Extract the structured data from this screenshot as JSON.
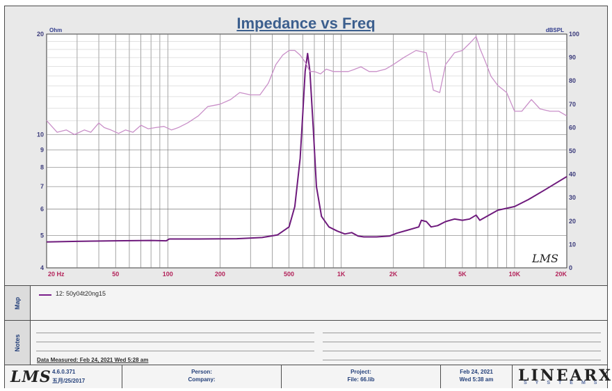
{
  "chart_data": {
    "type": "line",
    "title": "Impedance vs Freq",
    "y_left": {
      "unit": "Ohm",
      "scale": "log",
      "range": [
        4,
        20
      ],
      "ticks": [
        4,
        5,
        6,
        7,
        8,
        9,
        10,
        20
      ]
    },
    "y_right": {
      "unit": "dBSPL",
      "scale": "linear",
      "range": [
        0,
        100
      ],
      "ticks": [
        0,
        10,
        20,
        30,
        40,
        50,
        60,
        70,
        80,
        90,
        100
      ]
    },
    "x": {
      "unit": "Hz",
      "scale": "log",
      "range": [
        20,
        20000
      ],
      "ticks": [
        {
          "v": 20,
          "label": "20  Hz"
        },
        {
          "v": 50,
          "label": "50"
        },
        {
          "v": 100,
          "label": "100"
        },
        {
          "v": 200,
          "label": "200"
        },
        {
          "v": 500,
          "label": "500"
        },
        {
          "v": 1000,
          "label": "1K"
        },
        {
          "v": 2000,
          "label": "2K"
        },
        {
          "v": 5000,
          "label": "5K"
        },
        {
          "v": 10000,
          "label": "10K"
        },
        {
          "v": 20000,
          "label": "20K"
        }
      ]
    },
    "grid": true,
    "series": [
      {
        "name": "12: 50y04t20ng15",
        "axis": "left",
        "color": "#6e1a7c",
        "x": [
          20,
          30,
          50,
          80,
          98,
          102,
          150,
          250,
          350,
          430,
          500,
          540,
          580,
          600,
          620,
          640,
          660,
          690,
          720,
          770,
          850,
          950,
          1050,
          1150,
          1250,
          1350,
          1600,
          1900,
          2100,
          2400,
          2800,
          2900,
          3100,
          3300,
          3600,
          4000,
          4500,
          5000,
          5500,
          6000,
          6300,
          6700,
          8000,
          10000,
          12000,
          15000,
          20000
        ],
        "y": [
          4.78,
          4.8,
          4.82,
          4.83,
          4.82,
          4.88,
          4.88,
          4.89,
          4.93,
          5.02,
          5.3,
          6.1,
          8.5,
          11.5,
          15.5,
          17.5,
          15.5,
          10.5,
          7.0,
          5.7,
          5.3,
          5.15,
          5.05,
          5.1,
          4.98,
          4.95,
          4.95,
          4.98,
          5.08,
          5.18,
          5.3,
          5.55,
          5.5,
          5.3,
          5.35,
          5.5,
          5.6,
          5.55,
          5.6,
          5.75,
          5.55,
          5.65,
          5.95,
          6.1,
          6.4,
          6.85,
          7.5
        ]
      },
      {
        "name": "",
        "axis": "right",
        "color": "#c98fc8",
        "x": [
          20,
          23,
          26,
          29,
          33,
          36,
          40,
          43,
          47,
          52,
          57,
          63,
          70,
          77,
          85,
          95,
          105,
          115,
          130,
          150,
          170,
          200,
          230,
          260,
          300,
          340,
          380,
          420,
          460,
          500,
          540,
          580,
          620,
          660,
          700,
          760,
          820,
          900,
          1000,
          1100,
          1200,
          1300,
          1450,
          1600,
          1800,
          2000,
          2300,
          2700,
          3100,
          3400,
          3700,
          4000,
          4500,
          5000,
          5500,
          6000,
          6300,
          6800,
          7300,
          8000,
          9000,
          10000,
          11000,
          12500,
          14000,
          16000,
          18000,
          20000
        ],
        "y": [
          63,
          58,
          59,
          57,
          59,
          58,
          62,
          60,
          59,
          57.5,
          59,
          58,
          61,
          59.5,
          60,
          60.5,
          59,
          60,
          62,
          65,
          69,
          70,
          72,
          75,
          74,
          74,
          79,
          87,
          91,
          93,
          93,
          91,
          88,
          84,
          84,
          83,
          85,
          84,
          84,
          84,
          85,
          86,
          84,
          84,
          85,
          87,
          90,
          93,
          92,
          76,
          75,
          87,
          92,
          93,
          96,
          99,
          94,
          88,
          82,
          78,
          75,
          67,
          67,
          72,
          68,
          67,
          67,
          65
        ]
      }
    ]
  },
  "map": {
    "side_label": "Map",
    "legend_label": "12: 50y04t20ng15"
  },
  "notes": {
    "side_label": "Notes",
    "measured_text": "Data Measured: Feb 24, 2021  Wed  5:28 am"
  },
  "watermark": "LMS",
  "footer": {
    "logo": "LMS",
    "version": "4.6.0.371",
    "version_date": "五月/25/2017",
    "person_label": "Person:",
    "company_label": "Company:",
    "project_label": "Project:",
    "file_label": "File: 66.lib",
    "date": "Feb 24, 2021",
    "time": "Wed  5:38 am",
    "brand": "LINEARX",
    "brand_sub": "SYSTEMS"
  }
}
